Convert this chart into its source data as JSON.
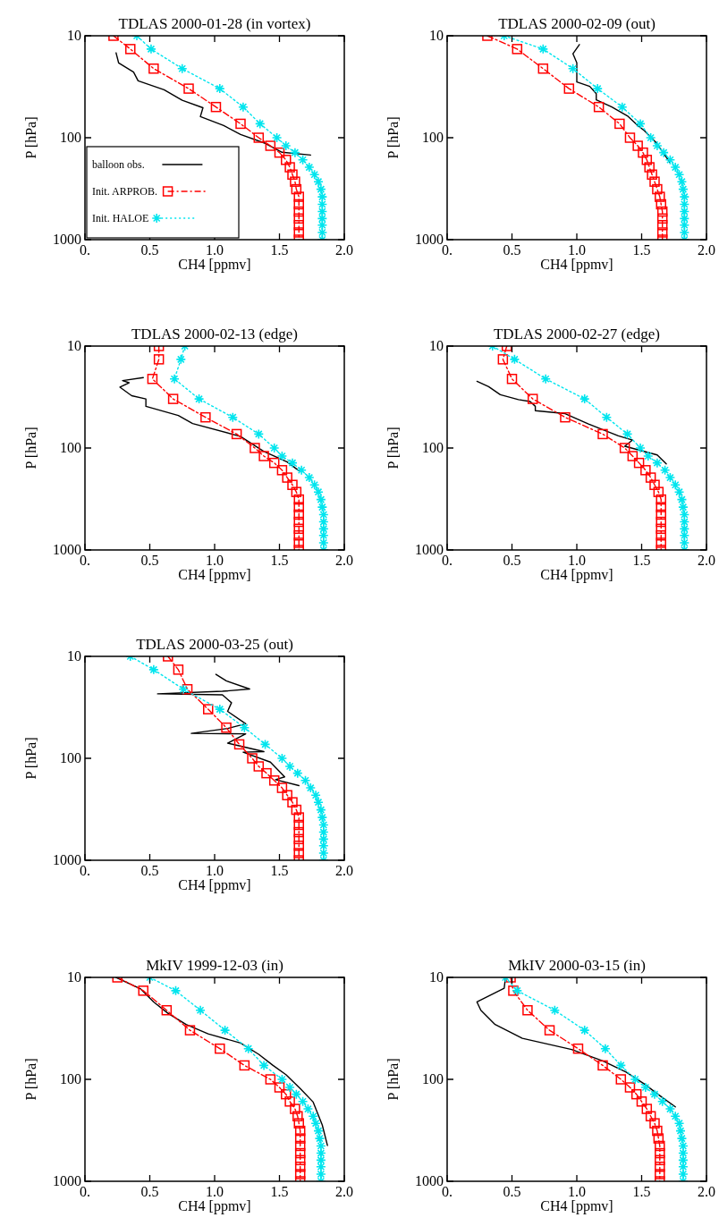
{
  "chart_data": [
    {
      "type": "line",
      "title": "TDLAS 2000-01-28 (in vortex)",
      "xlabel": "CH4 [ppmv]",
      "ylabel": "P [hPa]",
      "xlim": [
        0,
        2
      ],
      "xticks": [
        {
          "value": 0,
          "label": "0."
        },
        {
          "value": 0.5,
          "label": "0.5"
        },
        {
          "value": 1,
          "label": "1.0"
        },
        {
          "value": 1.5,
          "label": "1.5"
        },
        {
          "value": 2,
          "label": "2.0"
        }
      ],
      "ylim": [
        1000,
        10
      ],
      "yticks": [
        10,
        100,
        1000
      ],
      "log": "y",
      "legend": "bottom left",
      "series": [
        {
          "name": "balloon obs.",
          "color": "#000000",
          "marker": "none",
          "line_style": "solid",
          "x": [
            0.24,
            0.26,
            0.375,
            0.41,
            0.61,
            0.75,
            0.91,
            0.89,
            1.07,
            1.2,
            1.39,
            1.52,
            1.74
          ],
          "values": [
            14.7,
            18.5,
            22.7,
            27.7,
            33.9,
            43,
            50.8,
            62,
            76,
            93,
            113.5,
            139,
            148
          ]
        },
        {
          "name": "Init. ARPROB.",
          "color": "#ff0000",
          "marker": "square",
          "line_style": "dashed",
          "x": [
            0.22,
            0.35,
            0.53,
            0.8,
            1.01,
            1.2,
            1.34,
            1.43,
            1.5,
            1.55,
            1.58,
            1.6,
            1.62,
            1.63,
            1.65,
            1.65,
            1.65,
            1.65,
            1.65,
            1.65,
            1.65
          ],
          "values": [
            10,
            13.5,
            21,
            33,
            50,
            73,
            100,
            120,
            140,
            165,
            195,
            230,
            270,
            320,
            380,
            450,
            530,
            620,
            720,
            850,
            1000
          ]
        },
        {
          "name": "Init. HALOE",
          "color": "#00e5ee",
          "marker": "cross",
          "line_style": "dotted",
          "x": [
            0.4,
            0.51,
            0.75,
            1.04,
            1.22,
            1.35,
            1.48,
            1.55,
            1.62,
            1.68,
            1.73,
            1.77,
            1.8,
            1.82,
            1.83,
            1.83,
            1.83,
            1.83,
            1.83,
            1.83,
            1.83
          ],
          "values": [
            10,
            13.5,
            21,
            33,
            50,
            73,
            100,
            120,
            140,
            165,
            195,
            230,
            270,
            320,
            380,
            450,
            530,
            620,
            720,
            850,
            1000
          ]
        }
      ]
    },
    {
      "type": "line",
      "title": "TDLAS 2000-02-09 (out)",
      "xlabel": "CH4 [ppmv]",
      "ylabel": "P [hPa]",
      "xlim": [
        0,
        2
      ],
      "xticks": [
        {
          "value": 0,
          "label": "0."
        },
        {
          "value": 0.5,
          "label": "0.5"
        },
        {
          "value": 1,
          "label": "1.0"
        },
        {
          "value": 1.5,
          "label": "1.5"
        },
        {
          "value": 2,
          "label": "2.0"
        }
      ],
      "ylim": [
        1000,
        10
      ],
      "yticks": [
        10,
        100,
        1000
      ],
      "log": "y",
      "series": [
        {
          "color": "#000000",
          "marker": "none",
          "line_style": "solid",
          "x": [
            1.02,
            0.97,
            1.0,
            1.0,
            1.1,
            1.15,
            1.15,
            1.27,
            1.39,
            1.46,
            1.52,
            1.61,
            1.72
          ],
          "values": [
            12.2,
            15,
            18.4,
            28.4,
            31.4,
            37,
            42.5,
            50,
            61,
            74,
            85,
            111,
            176
          ]
        },
        {
          "color": "#ff0000",
          "marker": "square",
          "line_style": "dashed",
          "x": [
            0.31,
            0.54,
            0.74,
            0.94,
            1.17,
            1.33,
            1.41,
            1.47,
            1.51,
            1.54,
            1.56,
            1.58,
            1.6,
            1.62,
            1.64,
            1.65,
            1.66,
            1.66,
            1.66,
            1.66,
            1.66
          ],
          "values": [
            10,
            13.5,
            21,
            33,
            50,
            73,
            100,
            120,
            140,
            165,
            195,
            230,
            270,
            320,
            380,
            450,
            530,
            620,
            720,
            850,
            1000
          ]
        },
        {
          "color": "#00e5ee",
          "marker": "cross",
          "line_style": "dotted",
          "x": [
            0.44,
            0.74,
            0.97,
            1.16,
            1.35,
            1.49,
            1.57,
            1.62,
            1.67,
            1.72,
            1.76,
            1.79,
            1.81,
            1.82,
            1.83,
            1.83,
            1.83,
            1.83,
            1.83,
            1.83,
            1.83
          ],
          "values": [
            10,
            13.5,
            21,
            33,
            50,
            73,
            100,
            120,
            140,
            165,
            195,
            230,
            270,
            320,
            380,
            450,
            530,
            620,
            720,
            850,
            1000
          ]
        }
      ]
    },
    {
      "type": "line",
      "title": "TDLAS 2000-02-13 (edge)",
      "xlabel": "CH4 [ppmv]",
      "ylabel": "P [hPa]",
      "xlim": [
        0,
        2
      ],
      "xticks": [
        {
          "value": 0,
          "label": "0."
        },
        {
          "value": 0.5,
          "label": "0.5"
        },
        {
          "value": 1,
          "label": "1.0"
        },
        {
          "value": 1.5,
          "label": "1.5"
        },
        {
          "value": 2,
          "label": "2.0"
        }
      ],
      "ylim": [
        1000,
        10
      ],
      "yticks": [
        10,
        100,
        1000
      ],
      "log": "y",
      "series": [
        {
          "color": "#000000",
          "marker": "none",
          "line_style": "solid",
          "x": [
            0.45,
            0.29,
            0.34,
            0.27,
            0.36,
            0.47,
            0.47,
            0.72,
            0.83,
            1.2,
            1.38,
            1.56,
            1.65
          ],
          "values": [
            20.4,
            21.8,
            22.9,
            25.3,
            30.7,
            33,
            39,
            48,
            57.6,
            77,
            108,
            137,
            167
          ]
        },
        {
          "color": "#ff0000",
          "marker": "square",
          "line_style": "dashed",
          "x": [
            0.57,
            0.57,
            0.52,
            0.68,
            0.93,
            1.17,
            1.31,
            1.38,
            1.46,
            1.52,
            1.56,
            1.6,
            1.63,
            1.65,
            1.65,
            1.65,
            1.65,
            1.65,
            1.65,
            1.65,
            1.65
          ],
          "values": [
            10,
            13.5,
            21,
            33,
            50,
            73,
            100,
            120,
            140,
            165,
            195,
            230,
            270,
            320,
            380,
            450,
            530,
            620,
            720,
            850,
            1000
          ]
        },
        {
          "color": "#00e5ee",
          "marker": "cross",
          "line_style": "dotted",
          "x": [
            0.77,
            0.74,
            0.69,
            0.88,
            1.14,
            1.34,
            1.46,
            1.52,
            1.6,
            1.67,
            1.73,
            1.77,
            1.8,
            1.82,
            1.83,
            1.84,
            1.84,
            1.84,
            1.84,
            1.84,
            1.84
          ],
          "values": [
            10,
            13.5,
            21,
            33,
            50,
            73,
            100,
            120,
            140,
            165,
            195,
            230,
            270,
            320,
            380,
            450,
            530,
            620,
            720,
            850,
            1000
          ]
        }
      ]
    },
    {
      "type": "line",
      "title": "TDLAS 2000-02-27 (edge)",
      "xlabel": "CH4 [ppmv]",
      "ylabel": "P [hPa]",
      "xlim": [
        0,
        2
      ],
      "xticks": [
        {
          "value": 0,
          "label": "0."
        },
        {
          "value": 0.5,
          "label": "0.5"
        },
        {
          "value": 1,
          "label": "1.0"
        },
        {
          "value": 1.5,
          "label": "1.5"
        },
        {
          "value": 2,
          "label": "2.0"
        }
      ],
      "ylim": [
        1000,
        10
      ],
      "yticks": [
        10,
        100,
        1000
      ],
      "log": "y",
      "series": [
        {
          "color": "#000000",
          "marker": "none",
          "line_style": "solid",
          "x": [
            0.23,
            0.32,
            0.41,
            0.55,
            0.64,
            0.68,
            0.68,
            0.91,
            1.09,
            1.32,
            1.43,
            1.37,
            1.62,
            1.69
          ],
          "values": [
            22.2,
            25,
            30,
            33.5,
            35,
            39,
            43,
            46,
            58,
            76,
            83.5,
            96,
            117,
            143
          ]
        },
        {
          "color": "#ff0000",
          "marker": "square",
          "line_style": "dashed",
          "x": [
            0.46,
            0.43,
            0.5,
            0.66,
            0.91,
            1.2,
            1.37,
            1.43,
            1.48,
            1.53,
            1.57,
            1.6,
            1.63,
            1.65,
            1.65,
            1.65,
            1.65,
            1.65,
            1.65,
            1.65,
            1.65
          ],
          "values": [
            10,
            13.5,
            21,
            33,
            50,
            73,
            100,
            120,
            140,
            165,
            195,
            230,
            270,
            320,
            380,
            450,
            530,
            620,
            720,
            850,
            1000
          ]
        },
        {
          "color": "#00e5ee",
          "marker": "cross",
          "line_style": "dotted",
          "x": [
            0.35,
            0.52,
            0.76,
            1.06,
            1.23,
            1.39,
            1.49,
            1.55,
            1.62,
            1.68,
            1.72,
            1.76,
            1.79,
            1.81,
            1.82,
            1.83,
            1.83,
            1.83,
            1.83,
            1.83,
            1.83
          ],
          "values": [
            10,
            13.5,
            21,
            33,
            50,
            73,
            100,
            120,
            140,
            165,
            195,
            230,
            270,
            320,
            380,
            450,
            530,
            620,
            720,
            850,
            1000
          ]
        }
      ]
    },
    {
      "type": "line",
      "title": "TDLAS 2000-03-25 (out)",
      "xlabel": "CH4 [ppmv]",
      "ylabel": "P [hPa]",
      "xlim": [
        0,
        2
      ],
      "xticks": [
        {
          "value": 0,
          "label": "0."
        },
        {
          "value": 0.5,
          "label": "0.5"
        },
        {
          "value": 1,
          "label": "1.0"
        },
        {
          "value": 1.5,
          "label": "1.5"
        },
        {
          "value": 2,
          "label": "2.0"
        }
      ],
      "ylim": [
        1000,
        10
      ],
      "yticks": [
        10,
        100,
        1000
      ],
      "log": "y",
      "series": [
        {
          "color": "#000000",
          "marker": "none",
          "line_style": "solid",
          "x": [
            1.01,
            1.09,
            1.27,
            1.06,
            0.56,
            1.06,
            1.13,
            1.1,
            1.24,
            1.1,
            0.82,
            1.24,
            1.1,
            1.38,
            1.22,
            1.43,
            1.54,
            1.47,
            1.65
          ],
          "values": [
            15,
            17.4,
            20.9,
            22,
            23.3,
            23.8,
            28.5,
            34.6,
            45.8,
            51,
            57,
            57.5,
            71,
            86,
            87,
            109,
            152,
            162,
            185
          ]
        },
        {
          "color": "#ff0000",
          "marker": "square",
          "line_style": "dashed",
          "x": [
            0.64,
            0.72,
            0.79,
            0.95,
            1.09,
            1.19,
            1.29,
            1.34,
            1.4,
            1.46,
            1.52,
            1.56,
            1.6,
            1.63,
            1.65,
            1.65,
            1.65,
            1.65,
            1.65,
            1.65,
            1.65
          ],
          "values": [
            10,
            13.5,
            21,
            33,
            50,
            73,
            100,
            120,
            140,
            165,
            195,
            230,
            270,
            320,
            380,
            450,
            530,
            620,
            720,
            850,
            1000
          ]
        },
        {
          "color": "#00e5ee",
          "marker": "cross",
          "line_style": "dotted",
          "x": [
            0.35,
            0.53,
            0.76,
            1.04,
            1.23,
            1.39,
            1.52,
            1.58,
            1.64,
            1.7,
            1.74,
            1.78,
            1.8,
            1.82,
            1.83,
            1.84,
            1.84,
            1.84,
            1.84,
            1.84,
            1.84
          ],
          "values": [
            10,
            13.5,
            21,
            33,
            50,
            73,
            100,
            120,
            140,
            165,
            195,
            230,
            270,
            320,
            380,
            450,
            530,
            620,
            720,
            850,
            1000
          ]
        }
      ]
    },
    {
      "type": "line",
      "title": "MkIV 1999-12-03 (in)",
      "xlabel": "CH4 [ppmv]",
      "ylabel": "P [hPa]",
      "xlim": [
        0,
        2
      ],
      "xticks": [
        {
          "value": 0,
          "label": "0."
        },
        {
          "value": 0.5,
          "label": "0.5"
        },
        {
          "value": 1,
          "label": "1.0"
        },
        {
          "value": 1.5,
          "label": "1.5"
        },
        {
          "value": 2,
          "label": "2.0"
        }
      ],
      "ylim": [
        1000,
        10
      ],
      "yticks": [
        10,
        100,
        1000
      ],
      "log": "y",
      "series": [
        {
          "color": "#000000",
          "marker": "none",
          "line_style": "solid",
          "x": [
            0.24,
            0.43,
            0.53,
            0.64,
            0.78,
            0.95,
            1.2,
            1.34,
            1.45,
            1.55,
            1.66,
            1.76,
            1.83,
            1.87
          ],
          "values": [
            10,
            13,
            17.4,
            22.5,
            29,
            35.8,
            44,
            56.8,
            73,
            90,
            123,
            167,
            280,
            445
          ]
        },
        {
          "color": "#ff0000",
          "marker": "square",
          "line_style": "dashed",
          "x": [
            0.25,
            0.45,
            0.63,
            0.81,
            1.04,
            1.23,
            1.43,
            1.5,
            1.55,
            1.58,
            1.62,
            1.64,
            1.65,
            1.66,
            1.66,
            1.66,
            1.66,
            1.66,
            1.66,
            1.66,
            1.66
          ],
          "values": [
            10,
            13.5,
            21,
            33,
            50,
            73,
            100,
            120,
            140,
            165,
            195,
            230,
            270,
            320,
            380,
            450,
            530,
            620,
            720,
            850,
            1000
          ]
        },
        {
          "color": "#00e5ee",
          "marker": "cross",
          "line_style": "dotted",
          "x": [
            0.5,
            0.7,
            0.89,
            1.08,
            1.26,
            1.38,
            1.52,
            1.58,
            1.63,
            1.68,
            1.72,
            1.76,
            1.78,
            1.8,
            1.81,
            1.82,
            1.82,
            1.82,
            1.82,
            1.82,
            1.82
          ],
          "values": [
            10,
            13.5,
            21,
            33,
            50,
            73,
            100,
            120,
            140,
            165,
            195,
            230,
            270,
            320,
            380,
            450,
            530,
            620,
            720,
            850,
            1000
          ]
        }
      ]
    },
    {
      "type": "line",
      "title": "MkIV 2000-03-15 (in)",
      "xlabel": "CH4 [ppmv]",
      "ylabel": "P [hPa]",
      "xlim": [
        0,
        2
      ],
      "xticks": [
        {
          "value": 0,
          "label": "0."
        },
        {
          "value": 0.5,
          "label": "0.5"
        },
        {
          "value": 1,
          "label": "1.0"
        },
        {
          "value": 1.5,
          "label": "1.5"
        },
        {
          "value": 2,
          "label": "2.0"
        }
      ],
      "ylim": [
        1000,
        10
      ],
      "yticks": [
        10,
        100,
        1000
      ],
      "log": "y",
      "series": [
        {
          "color": "#000000",
          "marker": "none",
          "line_style": "solid",
          "x": [
            0.45,
            0.44,
            0.23,
            0.26,
            0.37,
            0.58,
            0.96,
            1.2,
            1.38,
            1.52,
            1.66,
            1.76
          ],
          "values": [
            10,
            12.8,
            17.4,
            21,
            29,
            39.6,
            51,
            66,
            85,
            111,
            151,
            186
          ]
        },
        {
          "color": "#ff0000",
          "marker": "square",
          "line_style": "dashed",
          "x": [
            0.49,
            0.51,
            0.62,
            0.79,
            1.01,
            1.2,
            1.34,
            1.41,
            1.46,
            1.5,
            1.54,
            1.57,
            1.6,
            1.62,
            1.63,
            1.64,
            1.64,
            1.64,
            1.64,
            1.64,
            1.64
          ],
          "values": [
            10,
            13.5,
            21,
            33,
            50,
            73,
            100,
            120,
            140,
            165,
            195,
            230,
            270,
            320,
            380,
            450,
            530,
            620,
            720,
            850,
            1000
          ]
        },
        {
          "color": "#00e5ee",
          "marker": "cross",
          "line_style": "dotted",
          "x": [
            0.45,
            0.54,
            0.83,
            1.06,
            1.22,
            1.34,
            1.45,
            1.53,
            1.6,
            1.66,
            1.72,
            1.76,
            1.79,
            1.8,
            1.81,
            1.82,
            1.82,
            1.82,
            1.82,
            1.82,
            1.82
          ],
          "values": [
            10,
            13.5,
            21,
            33,
            50,
            73,
            100,
            120,
            140,
            165,
            195,
            230,
            270,
            320,
            380,
            450,
            530,
            620,
            720,
            850,
            1000
          ]
        }
      ]
    }
  ]
}
